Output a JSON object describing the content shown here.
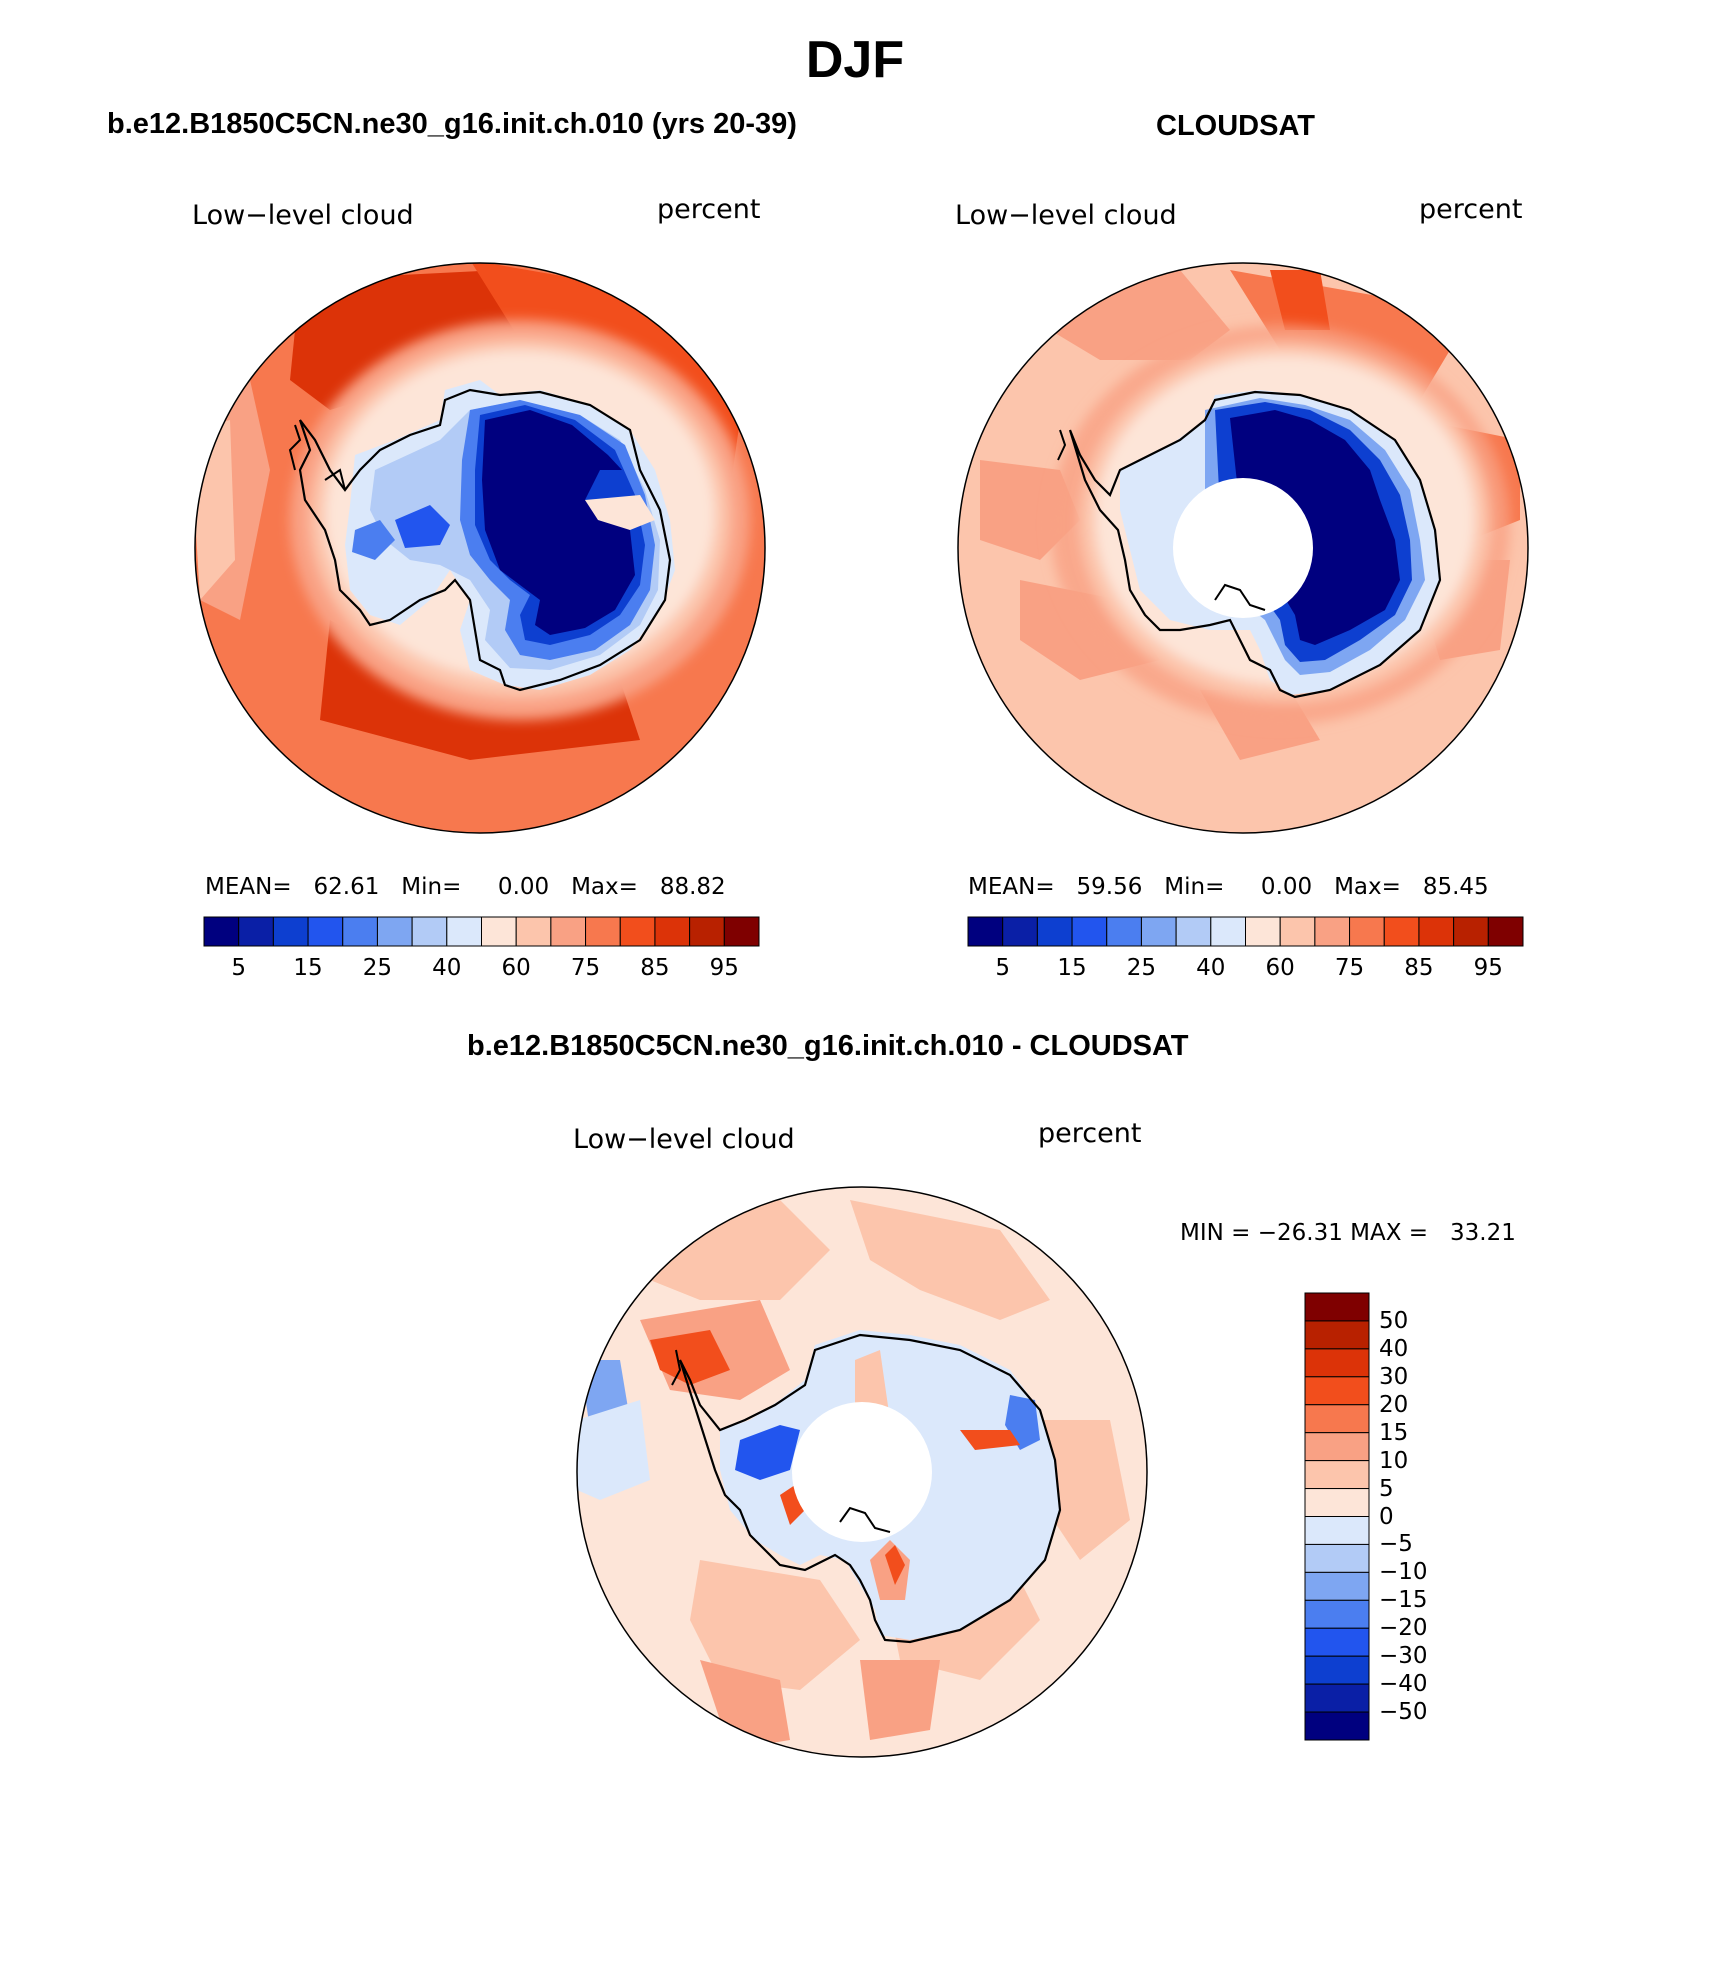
{
  "title": "DJF",
  "colors": {
    "levels15": [
      "#00007f",
      "#0a1fa6",
      "#0d3fd0",
      "#2255ee",
      "#4b7ef0",
      "#7ea6f2",
      "#b2cbf6",
      "#dbe8fb",
      "#fde5d8",
      "#fcc5ac",
      "#f9a184",
      "#f7784e",
      "#f24e1c",
      "#dc3308",
      "#b82100",
      "#7f0000"
    ],
    "diff": [
      "#00007f",
      "#0a1fa6",
      "#0d3fd0",
      "#2255ee",
      "#4b7ef0",
      "#7ea6f2",
      "#b2cbf6",
      "#dbe8fb",
      "#fde5d8",
      "#fcc5ac",
      "#f9a184",
      "#f7784e",
      "#f24e1c",
      "#dc3308",
      "#b82100",
      "#7f0000"
    ]
  },
  "panels": [
    {
      "subtitle": "b.e12.B1850C5CN.ne30_g16.init.ch.010 (yrs 20-39)",
      "left_label": "Low−level cloud",
      "right_label": "percent",
      "stats": "MEAN=   62.61   Min=     0.00   Max=   88.82",
      "ticks": [
        "5",
        "15",
        "25",
        "40",
        "60",
        "75",
        "85",
        "95"
      ]
    },
    {
      "subtitle": "CLOUDSAT",
      "left_label": "Low−level cloud",
      "right_label": "percent",
      "stats": "MEAN=   59.56   Min=     0.00   Max=   85.45",
      "ticks": [
        "5",
        "15",
        "25",
        "40",
        "60",
        "75",
        "85",
        "95"
      ]
    },
    {
      "subtitle": "b.e12.B1850C5CN.ne30_g16.init.ch.010 - CLOUDSAT",
      "left_label": "Low−level cloud",
      "right_label": "percent",
      "stats": "MIN = −26.31 MAX =   33.21",
      "ticks": [
        "50",
        "40",
        "30",
        "20",
        "15",
        "10",
        "5",
        "0",
        "−5",
        "−10",
        "−15",
        "−20",
        "−30",
        "−40",
        "−50"
      ]
    }
  ]
}
